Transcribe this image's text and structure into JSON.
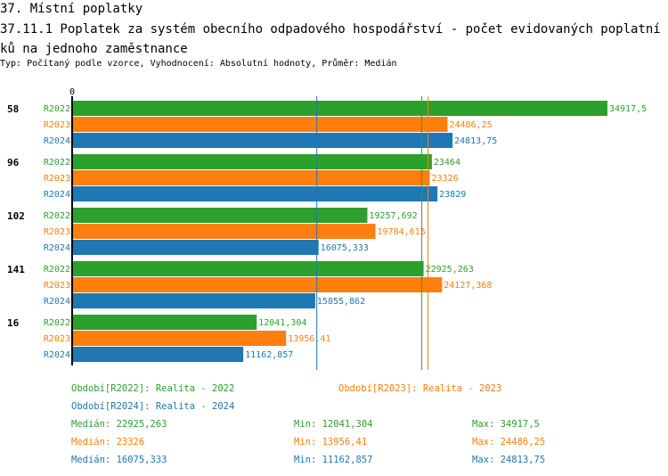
{
  "header": {
    "section": "37. Místní poplatky",
    "title": "37.11.1 Poplatek za systém obecního odpadového hospodářství - počet evidovaných poplatníků na jednoho zaměstnance",
    "subtitle": "Typ: Počítaný podle vzorce, Vyhodnocení: Absolutní hodnoty, Průměr: Medián"
  },
  "chart_data": {
    "type": "bar",
    "orientation": "horizontal",
    "axis_zero_label": "0",
    "xlim": [
      0,
      34917.5
    ],
    "categories": [
      "58",
      "96",
      "102",
      "141",
      "16"
    ],
    "series": [
      {
        "name": "R2022",
        "color": "#2ca02c",
        "values": [
          34917.5,
          23464,
          19257.692,
          22925.263,
          12041.304
        ],
        "labels": [
          "34917,5",
          "23464",
          "19257,692",
          "22925,263",
          "12041,304"
        ],
        "median": 22925.263
      },
      {
        "name": "R2023",
        "color": "#ff7f0e",
        "values": [
          24486.25,
          23326,
          19784.615,
          24127.368,
          13956.41
        ],
        "labels": [
          "24486,25",
          "23326",
          "19784,615",
          "24127,368",
          "13956,41"
        ],
        "median": 23326
      },
      {
        "name": "R2024",
        "color": "#1f77b4",
        "values": [
          24813.75,
          23829,
          16075.333,
          15855.862,
          11162.857
        ],
        "labels": [
          "24813,75",
          "23829",
          "16075,333",
          "15855,862",
          "11162,857"
        ],
        "median": 16075.333
      }
    ]
  },
  "legend": {
    "periods": [
      "Období[R2022]: Realita - 2022",
      "Období[R2023]: Realita - 2023",
      "Období[R2024]: Realita - 2024"
    ],
    "stats": [
      {
        "median": "Medián: 22925,263",
        "min": "Min: 12041,304",
        "max": "Max: 34917,5"
      },
      {
        "median": "Medián: 23326",
        "min": "Min: 13956,41",
        "max": "Max: 24486,25"
      },
      {
        "median": "Medián: 16075,333",
        "min": "Min: 11162,857",
        "max": "Max: 24813,75"
      }
    ]
  }
}
